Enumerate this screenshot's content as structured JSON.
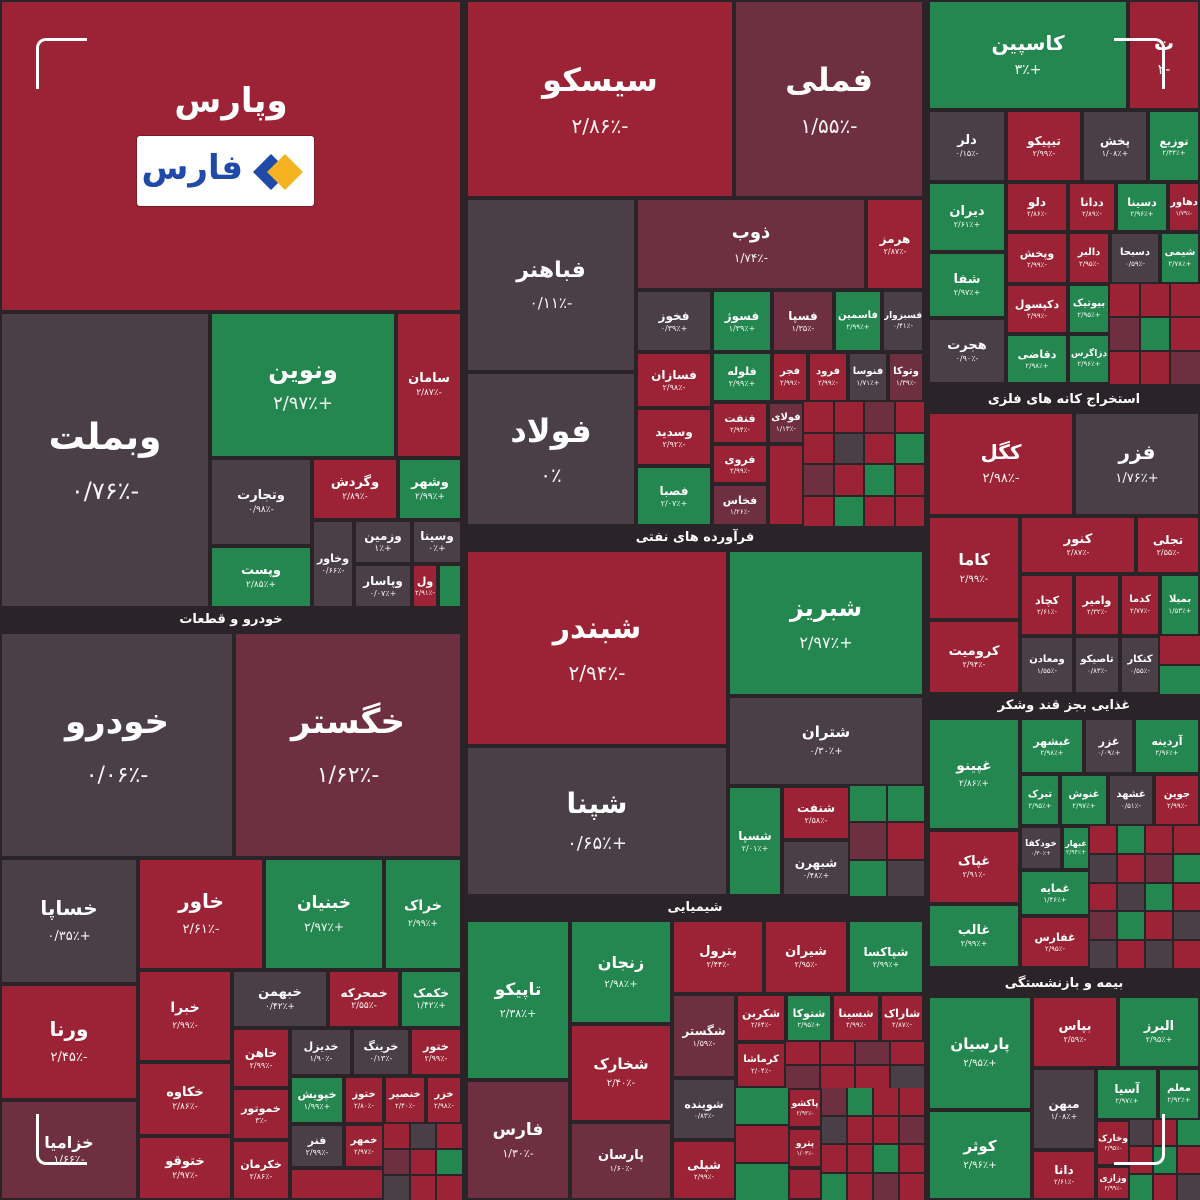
{
  "logo": {
    "text": "فارس"
  },
  "colors": {
    "negative": "#9b2335",
    "positive": "#23874f",
    "neutral": "#4a3f46",
    "slight_negative": "#6e2f40"
  },
  "sectors": {
    "auto": "خودرو و قطعات",
    "refining": "فرآورده های نفتی",
    "metal_mining": "استخراج کانه های فلزی",
    "food": "غذایی بجز قند وشکر",
    "chemical": "شیمیایی",
    "insurance": "بیمه و بازنشستگی"
  },
  "tiles": {
    "vpars": {
      "name": "وپارس",
      "change": ""
    },
    "seisco": {
      "name": "سیسکو",
      "change": "-۲/۸۶٪"
    },
    "fameli": {
      "name": "فملی",
      "change": "-۱/۵۵٪"
    },
    "kaspian": {
      "name": "کاسپین",
      "change": "+۳٪"
    },
    "kaspian_next": {
      "name": "ت",
      "change": "-۲"
    },
    "fabahonar": {
      "name": "فباهنر",
      "change": "-۰/۱۱٪"
    },
    "zob": {
      "name": "ذوب",
      "change": "-۱/۷۴٪"
    },
    "hormoz": {
      "name": "هرمز",
      "change": "-۲/۸۷٪"
    },
    "foulad": {
      "name": "فولاد",
      "change": "۰٪"
    },
    "vbemelat": {
      "name": "وبملت",
      "change": "-۰/۷۶٪"
    },
    "vnovin": {
      "name": "ونوین",
      "change": "+۲/۹۷٪"
    },
    "saman": {
      "name": "سامان",
      "change": "-۲/۸۷٪"
    },
    "vtejarat": {
      "name": "وتجارت",
      "change": "-۰/۹۸٪"
    },
    "vgardesh": {
      "name": "وگردش",
      "change": "-۲/۸۹٪"
    },
    "vshahr": {
      "name": "وشهر",
      "change": "+۲/۹۹٪"
    },
    "vpost": {
      "name": "وپست",
      "change": "+۲/۸۵٪"
    },
    "vkhavar": {
      "name": "وخاور",
      "change": "-۰/۶۶٪"
    },
    "vazmin": {
      "name": "وزمین",
      "change": "+۱٪"
    },
    "vsina": {
      "name": "وسینا",
      "change": "+۰٪"
    },
    "vpasar": {
      "name": "وپاسار",
      "change": "+۰/۰۷٪"
    },
    "vel": {
      "name": "ول",
      "change": "-۲/۹۱٪"
    },
    "khodro": {
      "name": "خودرو",
      "change": "-۰/۰۶٪"
    },
    "khgostar": {
      "name": "خگستر",
      "change": "-۱/۶۲٪"
    },
    "shebandar": {
      "name": "شبندر",
      "change": "-۲/۹۴٪"
    },
    "shebriz": {
      "name": "شبریز",
      "change": "+۲/۹۷٪"
    },
    "shetran": {
      "name": "شتران",
      "change": "+۰/۳۰٪"
    },
    "shepna": {
      "name": "شپنا",
      "change": "+۰/۶۵٪"
    },
    "shesepa": {
      "name": "شسپا",
      "change": "+۲/۰۱٪"
    },
    "sheneft": {
      "name": "شنفت",
      "change": "-۲/۵۸٪"
    },
    "shebehran": {
      "name": "شبهرن",
      "change": "+۰/۴۸٪"
    },
    "fakhoz": {
      "name": "فخوز",
      "change": "+۰/۳۹٪"
    },
    "fosva": {
      "name": "فسوژ",
      "change": "+۱/۳۹٪"
    },
    "fespa": {
      "name": "فسپا",
      "change": "-۱/۳۵٪"
    },
    "fasmin": {
      "name": "فاسمین",
      "change": "+۲/۹۹٪"
    },
    "fesbezvar": {
      "name": "فسبزوار",
      "change": "-۰/۴۱٪"
    },
    "fasazan": {
      "name": "فسازان",
      "change": "-۲/۹۸٪"
    },
    "foleh": {
      "name": "فلوله",
      "change": "+۲/۹۹٪"
    },
    "fajr": {
      "name": "فجر",
      "change": "-۲/۹۹٪"
    },
    "foroud": {
      "name": "فرود",
      "change": "-۲/۹۹٪"
    },
    "fanvoa": {
      "name": "فنوسا",
      "change": "+۱/۷۱٪"
    },
    "vtoka": {
      "name": "وتوکا",
      "change": "-۱/۳۹٪"
    },
    "vsadid": {
      "name": "وسدید",
      "change": "-۲/۹۲٪"
    },
    "fanaft": {
      "name": "فنفت",
      "change": "-۲/۹۴٪"
    },
    "foulai": {
      "name": "فولای",
      "change": "-۱/۱۳٪"
    },
    "forvi": {
      "name": "فروی",
      "change": "-۲/۹۹٪"
    },
    "fasfa": {
      "name": "فصبا",
      "change": "+۲/۰۷٪"
    },
    "fakhas": {
      "name": "فخاس",
      "change": "-۱/۲۶٪"
    },
    "khsapa": {
      "name": "خساپا",
      "change": "+۰/۳۵٪"
    },
    "khavar": {
      "name": "خاور",
      "change": "-۲/۶۱٪"
    },
    "khenian": {
      "name": "خبنیان",
      "change": "+۲/۹۷٪"
    },
    "khrak": {
      "name": "خراک",
      "change": "+۲/۹۹٪"
    },
    "varna": {
      "name": "ورنا",
      "change": "-۲/۴۵٪"
    },
    "khenira": {
      "name": "خبرا",
      "change": "-۲/۹۹٪"
    },
    "khbahman": {
      "name": "خبهمن",
      "change": "+۰/۴۲٪"
    },
    "khamhareh": {
      "name": "خمحرکه",
      "change": "-۲/۵۵٪"
    },
    "khkamka": {
      "name": "خکمک",
      "change": "+۱/۴۲٪"
    },
    "khkaveh": {
      "name": "خکاوه",
      "change": "-۲/۸۶٪"
    },
    "khahan": {
      "name": "خاهن",
      "change": "-۲/۹۹٪"
    },
    "khdizel": {
      "name": "خدیزل",
      "change": "-۱/۹۰٪"
    },
    "khrinag": {
      "name": "خرینگ",
      "change": "-۰/۱۳٪"
    },
    "khtoor": {
      "name": "ختور",
      "change": "-۲/۹۹٪"
    },
    "khmotor": {
      "name": "خموتور",
      "change": "-۳٪"
    },
    "khbish": {
      "name": "خپویش",
      "change": "+۱/۹۹٪"
    },
    "khzamia": {
      "name": "ختوز",
      "change": "-۲/۸۰٪"
    },
    "khsaipa_noor": {
      "name": "خنصیر",
      "change": "-۲/۴۰٪"
    },
    "khazar": {
      "name": "خزر",
      "change": "-۲/۹۸٪"
    },
    "khazam": {
      "name": "خزامیا",
      "change": "-۱/۶۶٪"
    },
    "khtoghu": {
      "name": "ختوقو",
      "change": "-۲/۹۷٪"
    },
    "khkarman": {
      "name": "خکرمان",
      "change": "-۲/۸۶٪"
    },
    "khfanar": {
      "name": "فنر",
      "change": "-۲/۹۹٪"
    },
    "khmehr": {
      "name": "خمهر",
      "change": "-۲/۹۷٪"
    },
    "tapiko": {
      "name": "تاپیکو",
      "change": "+۲/۳۸٪"
    },
    "zanjan": {
      "name": "زنجان",
      "change": "+۲/۹۸٪"
    },
    "petrol": {
      "name": "پترول",
      "change": "-۲/۴۴٪"
    },
    "shiran": {
      "name": "شیران",
      "change": "-۲/۹۵٪"
    },
    "shepaksa": {
      "name": "شپاکسا",
      "change": "+۲/۹۹٪"
    },
    "shegostar": {
      "name": "شگستر",
      "change": "-۱/۵۹٪"
    },
    "shekarbon": {
      "name": "شکربن",
      "change": "-۲/۶۴٪"
    },
    "shetoka": {
      "name": "شتوکا",
      "change": "+۲/۹۵٪"
    },
    "shesina": {
      "name": "شسینا",
      "change": "-۲/۹۹٪"
    },
    "sharak": {
      "name": "شاراک",
      "change": "-۲/۸۷٪"
    },
    "shekharak": {
      "name": "شخارک",
      "change": "-۲/۴۰٪"
    },
    "kermasha": {
      "name": "کرماشا",
      "change": "-۲/۰۴٪"
    },
    "shovindeh": {
      "name": "شوینده",
      "change": "-۰/۸۳٪"
    },
    "pabak": {
      "name": "پاکشو",
      "change": "-۲/۹۲٪"
    },
    "petro": {
      "name": "پترو",
      "change": "-۱/۰۳٪"
    },
    "fars": {
      "name": "فارس",
      "change": "-۱/۳۰٪"
    },
    "parsan": {
      "name": "پارسان",
      "change": "-۱/۶۰٪"
    },
    "shepali": {
      "name": "شپلی",
      "change": "-۲/۹۹٪"
    },
    "dar": {
      "name": "دلر",
      "change": "-۰/۱۵٪"
    },
    "tipiko": {
      "name": "تیپیکو",
      "change": "-۲/۹۹٪"
    },
    "pakhsh": {
      "name": "پخش",
      "change": "+۱/۰۸٪"
    },
    "tozi": {
      "name": "توزیع",
      "change": "+۲/۳۴٪"
    },
    "deran": {
      "name": "دیران",
      "change": "+۲/۶۱٪"
    },
    "dalu": {
      "name": "دلو",
      "change": "-۲/۸۶٪"
    },
    "dadara": {
      "name": "ددانا",
      "change": "-۲/۸۹٪"
    },
    "dsina": {
      "name": "دسینا",
      "change": "+۲/۹۶٪"
    },
    "dhavar": {
      "name": "دهاور",
      "change": "-۱/۷۹٪"
    },
    "shafa": {
      "name": "شفا",
      "change": "+۲/۹۷٪"
    },
    "dpakhsh": {
      "name": "وپخش",
      "change": "-۲/۹۹٪"
    },
    "dalbar": {
      "name": "دالبر",
      "change": "-۲/۹۵٪"
    },
    "dsobha": {
      "name": "دسبحا",
      "change": "-۰/۵۹٪"
    },
    "shimi": {
      "name": "شیمی",
      "change": "+۲/۷۸٪"
    },
    "dkosol": {
      "name": "دکپسول",
      "change": "-۲/۹۹٪"
    },
    "biotic": {
      "name": "بیوتیک",
      "change": "+۲/۹۵٪"
    },
    "hejrat": {
      "name": "هجرت",
      "change": "-۰/۹۰٪"
    },
    "dghazi": {
      "name": "دقاضی",
      "change": "+۲/۹۸٪"
    },
    "dzagros": {
      "name": "دزاگرس",
      "change": "+۲/۹۶٪"
    },
    "kegol": {
      "name": "کگل",
      "change": "-۲/۹۸٪"
    },
    "fazar": {
      "name": "فزر",
      "change": "+۱/۷۶٪"
    },
    "kama": {
      "name": "کاما",
      "change": "-۲/۹۹٪"
    },
    "kenor": {
      "name": "کنور",
      "change": "-۲/۸۷٪"
    },
    "tajli": {
      "name": "تجلی",
      "change": "-۲/۵۵٪"
    },
    "kechad": {
      "name": "کچاد",
      "change": "-۲/۶۱٪"
    },
    "vamir": {
      "name": "وامیر",
      "change": "-۲/۳۲٪"
    },
    "kadma": {
      "name": "کدما",
      "change": "-۲/۷۷٪"
    },
    "bemila": {
      "name": "بمیلا",
      "change": "+۱/۵۳٪"
    },
    "koromit": {
      "name": "کرومیت",
      "change": "-۲/۹۴٪"
    },
    "vmaadan": {
      "name": "ومعادن",
      "change": "-۱/۵۵٪"
    },
    "tasiko": {
      "name": "تاصیکو",
      "change": "-۰/۸۳٪"
    },
    "ktokar": {
      "name": "کنکار",
      "change": "-۰/۵۵٪"
    },
    "ghbeshahr": {
      "name": "غبشهر",
      "change": "+۲/۹۸٪"
    },
    "gher": {
      "name": "غزر",
      "change": "+۰/۰۹٪"
    },
    "ardineh": {
      "name": "آردینه",
      "change": "+۲/۹۶٪"
    },
    "ghnino": {
      "name": "غپینو",
      "change": "+۲/۸۶٪"
    },
    "tabrak": {
      "name": "تبرک",
      "change": "+۲/۹۵٪"
    },
    "ghanoush": {
      "name": "غنوش",
      "change": "+۲/۹۷٪"
    },
    "ghshahd": {
      "name": "غشهد",
      "change": "-۰/۵۱٪"
    },
    "jovin": {
      "name": "جوین",
      "change": "-۲/۹۹٪"
    },
    "ghpak": {
      "name": "غپاک",
      "change": "-۲/۹۱٪"
    },
    "khodkafa": {
      "name": "خودکفا",
      "change": "+۰/۳۰٪"
    },
    "ghehar": {
      "name": "غبهار",
      "change": "+۲/۹۴٪"
    },
    "ghmaya": {
      "name": "غمایه",
      "change": "+۱/۴۶٪"
    },
    "ghaleb": {
      "name": "غالب",
      "change": "+۲/۹۹٪"
    },
    "ghfars": {
      "name": "غفارس",
      "change": "-۲/۹۵٪"
    },
    "bepas": {
      "name": "بپاس",
      "change": "-۲/۵۹٪"
    },
    "alborz": {
      "name": "البرز",
      "change": "+۲/۹۵٪"
    },
    "parsian": {
      "name": "پارسیان",
      "change": "+۲/۹۵٪"
    },
    "asia": {
      "name": "آسیا",
      "change": "+۲/۹۷٪"
    },
    "moallem": {
      "name": "معلم",
      "change": "+۲/۹۲٪"
    },
    "mihan": {
      "name": "میهن",
      "change": "+۱/۰۸٪"
    },
    "kovsar": {
      "name": "کوثر",
      "change": "+۲/۹۶٪"
    },
    "dana": {
      "name": "دانا",
      "change": "-۲/۶۱٪"
    },
    "vkhark": {
      "name": "وخارک",
      "change": "-۲/۹۵٪"
    },
    "vrazi": {
      "name": "وزازی",
      "change": "-۲/۹۹٪"
    }
  }
}
